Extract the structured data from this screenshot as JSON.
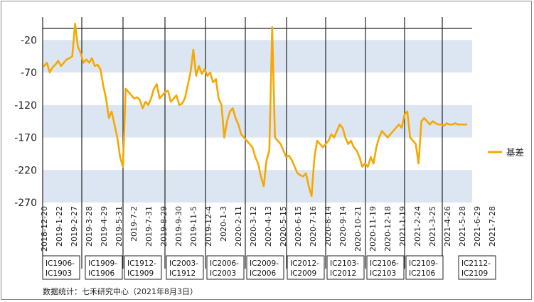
{
  "chart_data": {
    "type": "line",
    "title": "",
    "xlabel": "",
    "ylabel": "",
    "ylim": [
      -270,
      0
    ],
    "yticks": [
      -20,
      -70,
      -120,
      -170,
      -220,
      -270
    ],
    "x_tick_labels": [
      "2018-12-20",
      "2019-1-22",
      "2019-2-27",
      "2019-3-28",
      "2019-4-29",
      "2019-5-31",
      "2019-7-2",
      "2019-7-31",
      "2019-8-29",
      "2019-9-30",
      "2019-11-5",
      "2019-12-4",
      "2020-1-3",
      "2020-2-11",
      "2020-3-12",
      "2020-4-13",
      "2020-5-15",
      "2020-6-15",
      "2020-7-16",
      "2020-8-14",
      "2020-9-14",
      "2020-10-21",
      "2020-11-19",
      "2020-12-18",
      "2021-1-19",
      "2021-2-24",
      "2021-3-25",
      "2021-4-26",
      "2021-5-28",
      "2021-6-29",
      "2021-7-28"
    ],
    "contract_windows": [
      "IC1906-IC1903",
      "IC1909-IC1906",
      "IC1912-IC1909",
      "IC2003-IC1912",
      "IC2006-IC2003",
      "IC2009-IC2006",
      "IC2012-IC2009",
      "IC2103-IC2012",
      "IC2106-IC2103",
      "IC2109-IC2106",
      "IC2112-IC2109"
    ],
    "series": [
      {
        "name": "基差",
        "color": "#f5a800",
        "x": [
          0,
          1,
          2,
          3,
          4,
          5,
          6,
          7,
          8,
          9,
          10,
          11,
          12,
          13,
          14,
          15,
          16,
          17,
          18,
          19,
          20,
          21,
          22,
          23,
          24,
          25,
          26,
          27,
          28,
          29,
          30,
          31,
          32,
          33,
          34,
          35,
          36,
          37,
          38,
          39,
          40,
          41,
          42,
          43,
          44,
          45,
          46,
          47,
          48,
          49,
          50,
          51,
          52,
          53,
          54,
          55,
          56,
          57,
          58,
          59,
          60,
          61,
          62,
          63,
          64,
          65,
          66,
          67,
          68,
          69,
          70,
          71,
          72,
          73,
          74,
          75,
          76,
          77,
          78,
          79,
          80,
          81,
          82,
          83,
          84,
          85,
          86,
          87,
          88,
          89,
          90,
          91,
          92,
          93,
          94,
          95,
          96,
          97,
          98,
          99,
          100,
          101,
          102,
          103,
          104,
          105,
          106,
          107,
          108,
          109,
          110,
          111,
          112,
          113,
          114,
          115,
          116,
          117,
          118,
          119,
          120,
          121,
          122,
          123,
          124,
          125,
          126,
          127,
          128,
          129,
          130,
          131,
          132,
          133,
          134,
          135,
          136,
          137,
          138,
          139,
          140,
          141,
          142,
          143,
          144,
          145,
          146,
          147,
          148,
          149,
          150
        ],
        "values": [
          -60,
          -55,
          -70,
          -62,
          -58,
          -52,
          -60,
          -55,
          -50,
          -48,
          -45,
          5,
          -30,
          -40,
          -55,
          -50,
          -55,
          -48,
          -60,
          -58,
          -65,
          -90,
          -110,
          -140,
          -130,
          -150,
          -170,
          -200,
          -215,
          -95,
          -100,
          -105,
          -110,
          -108,
          -112,
          -125,
          -115,
          -120,
          -110,
          -95,
          -88,
          -110,
          -105,
          -100,
          -98,
          -115,
          -110,
          -105,
          -120,
          -118,
          -110,
          -90,
          -70,
          -35,
          -75,
          -60,
          -72,
          -65,
          -75,
          -70,
          -85,
          -80,
          -110,
          -120,
          -170,
          -145,
          -130,
          -125,
          -140,
          -150,
          -165,
          -170,
          -175,
          -180,
          -185,
          -200,
          -210,
          -230,
          -245,
          -205,
          -190,
          0,
          -170,
          -175,
          -180,
          -190,
          -200,
          -198,
          -205,
          -215,
          -225,
          -228,
          -230,
          -225,
          -245,
          -260,
          -200,
          -175,
          -180,
          -185,
          -180,
          -175,
          -165,
          -170,
          -160,
          -150,
          -155,
          -170,
          -180,
          -175,
          -185,
          -190,
          -200,
          -215,
          -210,
          -215,
          -200,
          -210,
          -185,
          -170,
          -160,
          -165,
          -170,
          -165,
          -160,
          -155,
          -150,
          -155,
          -135,
          -130,
          -170,
          -175,
          -180,
          -210,
          -145,
          -140,
          -145,
          -150,
          -145,
          -148,
          -150,
          -150,
          -152,
          -148,
          -150,
          -150,
          -148,
          -150,
          -150,
          -150,
          -150
        ]
      }
    ],
    "legend": "right",
    "grid": false,
    "source": "数据统计：七禾研究中心（2021年8月3日）"
  }
}
